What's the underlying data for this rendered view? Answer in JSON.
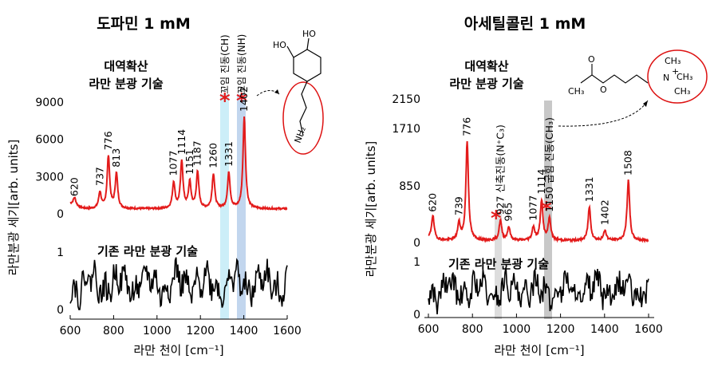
{
  "chart_data": [
    {
      "type": "line",
      "title": "도파민 1 mM",
      "xlabel": "라만 천이 [cm⁻¹]",
      "ylabel": "라만분광 세기[arb. units]",
      "xlim": [
        600,
        1600
      ],
      "x_ticks": [
        "600",
        "800",
        "1000",
        "1200",
        "1400",
        "1600"
      ],
      "top_panel": {
        "label_line1": "대역확산",
        "label_line2": "라만 분광 기술",
        "y_ticks": [
          "0",
          "3000",
          "6000",
          "9000"
        ],
        "ylim": [
          0,
          9000
        ],
        "color": "#e31b1b",
        "baseline": 800,
        "peaks": [
          {
            "x": 620,
            "height": 600,
            "label": "620"
          },
          {
            "x": 737,
            "height": 1300,
            "label": "737"
          },
          {
            "x": 776,
            "height": 4200,
            "label": "776"
          },
          {
            "x": 813,
            "height": 2800,
            "label": "813"
          },
          {
            "x": 1077,
            "height": 2100,
            "label": "1077"
          },
          {
            "x": 1114,
            "height": 3800,
            "label": "1114"
          },
          {
            "x": 1151,
            "height": 2100,
            "label": "1151"
          },
          {
            "x": 1187,
            "height": 2900,
            "label": "1187"
          },
          {
            "x": 1260,
            "height": 2800,
            "label": "1260"
          },
          {
            "x": 1331,
            "height": 2900,
            "label": "1331"
          },
          {
            "x": 1402,
            "height": 7400,
            "label": "1402"
          }
        ]
      },
      "bottom_panel": {
        "label": "기존 라만 분광 기술",
        "y_ticks": [
          "0",
          "1"
        ],
        "ylim": [
          0,
          1
        ],
        "color": "#000000"
      },
      "bands": [
        {
          "x": 1320,
          "label": "꼬임 진동(CH)",
          "color": "#cceef8"
        },
        {
          "x": 1402,
          "label": "꼬임 진동(NH)",
          "color": "#c2d6ee"
        }
      ],
      "molecule_labels": [
        "HO",
        "HO",
        "NH₂"
      ]
    },
    {
      "type": "line",
      "title": "아세틸콜린 1 mM",
      "xlabel": "라만 천이 [cm⁻¹]",
      "ylabel": "라만분광 세기[arb. units]",
      "xlim": [
        600,
        1600
      ],
      "x_ticks": [
        "600",
        "800",
        "1000",
        "1200",
        "1400",
        "1600"
      ],
      "top_panel": {
        "label_line1": "대역확산",
        "label_line2": "라만 분광 기술",
        "y_ticks": [
          "0",
          "850",
          "1710",
          "2150"
        ],
        "ylim": [
          0,
          2150
        ],
        "color": "#e31b1b",
        "baseline": 60,
        "peaks": [
          {
            "x": 620,
            "height": 350,
            "label": "620"
          },
          {
            "x": 739,
            "height": 250,
            "label": "739"
          },
          {
            "x": 776,
            "height": 1480,
            "label": "776"
          },
          {
            "x": 927,
            "height": 300,
            "label": "927 신축진동(N⁺C₃)"
          },
          {
            "x": 965,
            "height": 200,
            "label": "965"
          },
          {
            "x": 1077,
            "height": 200,
            "label": "1077"
          },
          {
            "x": 1114,
            "height": 600,
            "label": "1114"
          },
          {
            "x": 1150,
            "height": 330,
            "label": "1150 굽힘 진동(CH₃)"
          },
          {
            "x": 1331,
            "height": 500,
            "label": "1331"
          },
          {
            "x": 1402,
            "height": 150,
            "label": "1402"
          },
          {
            "x": 1508,
            "height": 900,
            "label": "1508"
          }
        ]
      },
      "bottom_panel": {
        "label": "기존 라만 분광 기술",
        "y_ticks": [
          "0",
          "1"
        ],
        "ylim": [
          0,
          1
        ],
        "color": "#000000"
      },
      "bands": [
        {
          "x": 927,
          "label": "",
          "color": "#dddddd"
        },
        {
          "x": 1150,
          "label": "",
          "color": "#c8c8c8"
        }
      ],
      "molecule_labels": [
        "O",
        "CH₃",
        "O",
        "N",
        "+",
        "CH₃",
        "CH₃",
        "CH₃"
      ]
    }
  ]
}
